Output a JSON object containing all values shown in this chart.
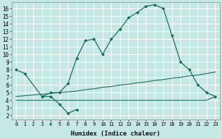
{
  "xlabel": "Humidex (Indice chaleur)",
  "bg_color": "#c5e8e5",
  "grid_color": "#ffffff",
  "line_color": "#1a6b5a",
  "xlim": [
    -0.5,
    23.5
  ],
  "ylim": [
    1.5,
    16.8
  ],
  "xticks": [
    0,
    1,
    2,
    3,
    4,
    5,
    6,
    7,
    8,
    9,
    10,
    11,
    12,
    13,
    14,
    15,
    16,
    17,
    18,
    19,
    20,
    21,
    22,
    23
  ],
  "yticks": [
    2,
    3,
    4,
    5,
    6,
    7,
    8,
    9,
    10,
    11,
    12,
    13,
    14,
    15,
    16
  ],
  "line1_x": [
    0,
    1,
    3,
    4,
    5,
    6,
    7,
    8,
    9,
    10,
    11,
    12,
    13,
    14,
    15,
    16,
    17,
    18,
    19,
    20,
    21,
    22,
    23
  ],
  "line1_y": [
    8.0,
    7.5,
    4.5,
    5.0,
    5.0,
    6.2,
    9.5,
    11.8,
    12.0,
    10.0,
    12.0,
    13.3,
    14.8,
    15.5,
    16.3,
    16.5,
    16.0,
    12.5,
    9.0,
    8.0,
    6.0,
    5.0,
    4.5
  ],
  "line2_x": [
    3,
    4,
    5,
    6,
    7
  ],
  "line2_y": [
    4.5,
    4.5,
    3.5,
    2.3,
    2.8
  ],
  "line3_x": [
    0,
    3,
    4,
    5,
    6,
    7,
    8,
    9,
    10,
    11,
    12,
    13,
    14,
    15,
    16,
    17,
    18,
    19,
    20,
    21,
    22,
    23
  ],
  "line3_y": [
    4.5,
    4.8,
    4.9,
    5.0,
    5.1,
    5.2,
    5.4,
    5.5,
    5.7,
    5.8,
    6.0,
    6.1,
    6.3,
    6.4,
    6.6,
    6.7,
    6.9,
    7.0,
    7.2,
    7.3,
    7.5,
    7.7
  ],
  "line4_x": [
    0,
    3,
    4,
    5,
    6,
    7,
    8,
    9,
    10,
    11,
    12,
    13,
    14,
    15,
    16,
    17,
    18,
    19,
    20,
    21,
    22,
    23
  ],
  "line4_y": [
    4.0,
    4.0,
    4.0,
    4.0,
    4.0,
    4.0,
    4.0,
    4.0,
    4.0,
    4.0,
    4.0,
    4.0,
    4.0,
    4.0,
    4.0,
    4.0,
    4.0,
    4.0,
    4.0,
    4.0,
    4.0,
    4.5
  ]
}
